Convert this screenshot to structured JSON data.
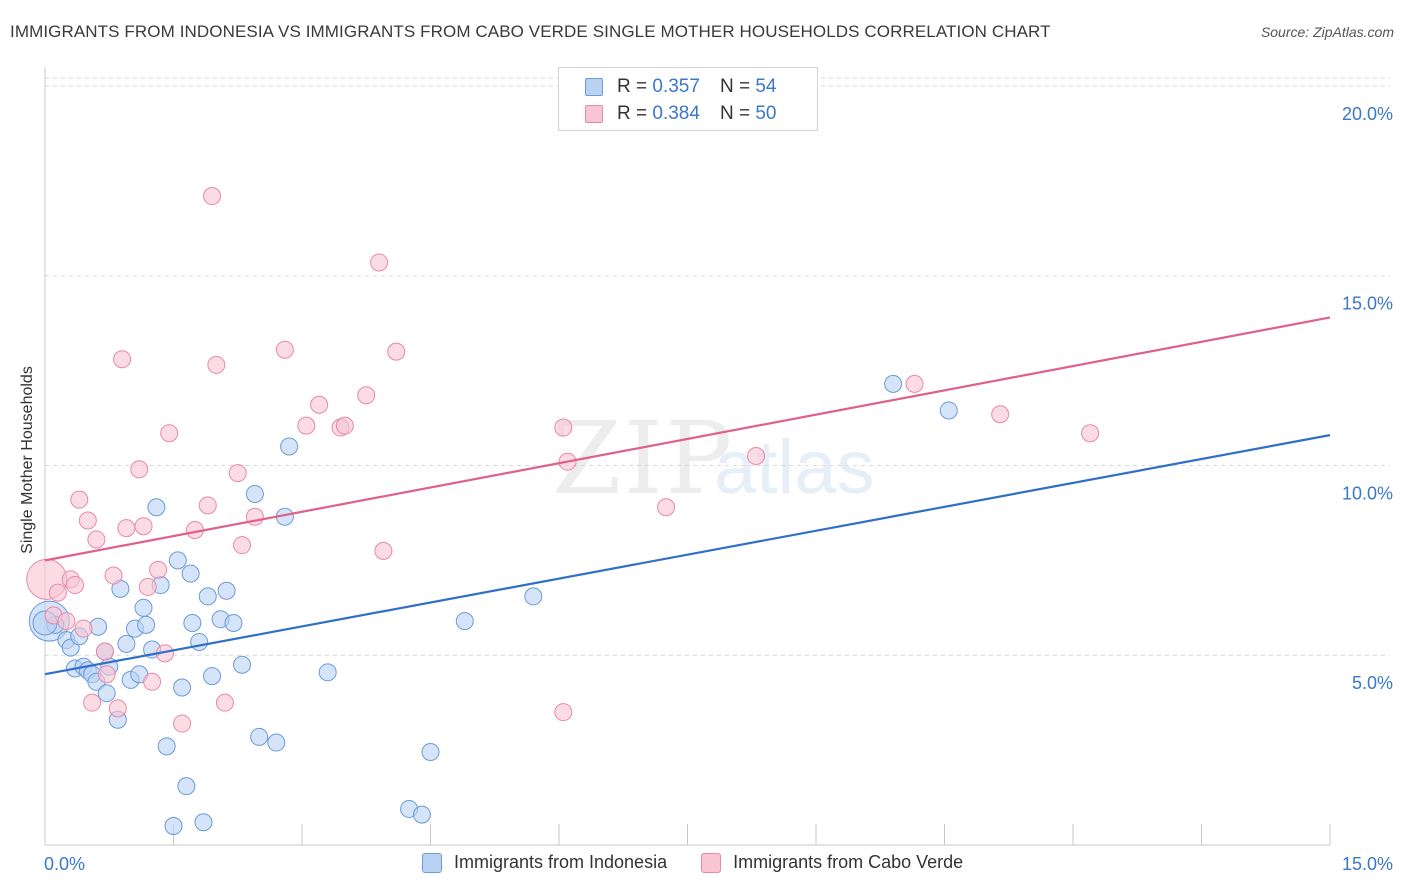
{
  "title": "IMMIGRANTS FROM INDONESIA VS IMMIGRANTS FROM CABO VERDE SINGLE MOTHER HOUSEHOLDS CORRELATION CHART",
  "source": "Source: ZipAtlas.com",
  "watermark": {
    "zip": "ZIP",
    "atlas": "atlas"
  },
  "legend": {
    "rows": [
      {
        "r_label": "R =",
        "r_value": "0.357",
        "n_label": "N =",
        "n_value": "54"
      },
      {
        "r_label": "R =",
        "r_value": "0.384",
        "n_label": "N =",
        "n_value": "50"
      }
    ]
  },
  "colors": {
    "series1_fill": "#b9d2f3",
    "series1_stroke": "#6b9bd6",
    "series1_line": "#2f6fc9",
    "series2_fill": "#f9c4d3",
    "series2_stroke": "#e889a7",
    "series2_line": "#e0608a",
    "tick_label": "#3a78c8",
    "grid": "#d8d8d8"
  },
  "chart_data": {
    "type": "scatter",
    "title": "IMMIGRANTS FROM INDONESIA VS IMMIGRANTS FROM CABO VERDE SINGLE MOTHER HOUSEHOLDS CORRELATION CHART",
    "xlabel": "",
    "ylabel": "Single Mother Households",
    "xlim": [
      0,
      15
    ],
    "ylim": [
      0,
      20.5
    ],
    "x_tick_labels": [
      {
        "value": 0,
        "label": "0.0%"
      },
      {
        "value": 15,
        "label": "15.0%"
      }
    ],
    "y_tick_labels": [
      {
        "value": 5,
        "label": "5.0%"
      },
      {
        "value": 10,
        "label": "10.0%"
      },
      {
        "value": 15,
        "label": "15.0%"
      },
      {
        "value": 20,
        "label": "20.0%"
      }
    ],
    "x_minor_ticks": [
      1.5,
      3.0,
      4.5,
      6.0,
      7.5,
      9.0,
      10.5,
      12.0,
      13.5
    ],
    "series": [
      {
        "name": "Immigrants from Indonesia",
        "r": 0.357,
        "n": 54,
        "trend": {
          "x": [
            0,
            15
          ],
          "y": [
            4.5,
            10.8
          ]
        },
        "points": [
          [
            0.05,
            5.9,
            "lg"
          ],
          [
            0.12,
            5.8
          ],
          [
            0.25,
            5.4
          ],
          [
            0.3,
            5.2
          ],
          [
            0.35,
            4.65
          ],
          [
            0.4,
            5.5
          ],
          [
            0.45,
            4.7
          ],
          [
            0.5,
            4.6
          ],
          [
            0.55,
            4.5
          ],
          [
            0.6,
            4.3
          ],
          [
            0.62,
            5.75
          ],
          [
            0.7,
            5.1
          ],
          [
            0.72,
            4.0
          ],
          [
            0.75,
            4.7
          ],
          [
            0.85,
            3.3
          ],
          [
            0.88,
            6.75
          ],
          [
            0.95,
            5.3
          ],
          [
            1.0,
            4.35
          ],
          [
            1.05,
            5.7
          ],
          [
            1.1,
            4.5
          ],
          [
            1.15,
            6.25
          ],
          [
            1.18,
            5.8
          ],
          [
            1.25,
            5.15
          ],
          [
            1.3,
            8.9
          ],
          [
            1.35,
            6.85
          ],
          [
            1.42,
            2.6
          ],
          [
            1.5,
            0.5
          ],
          [
            1.55,
            7.5
          ],
          [
            1.6,
            4.15
          ],
          [
            1.65,
            1.55
          ],
          [
            1.7,
            7.15
          ],
          [
            1.72,
            5.85
          ],
          [
            1.8,
            5.35
          ],
          [
            1.85,
            0.6
          ],
          [
            1.9,
            6.55
          ],
          [
            1.95,
            4.45
          ],
          [
            2.05,
            5.95
          ],
          [
            2.12,
            6.7
          ],
          [
            2.2,
            5.85
          ],
          [
            2.3,
            4.75
          ],
          [
            2.45,
            9.25
          ],
          [
            2.5,
            2.85
          ],
          [
            2.7,
            2.7
          ],
          [
            2.8,
            8.65
          ],
          [
            2.85,
            10.5
          ],
          [
            3.3,
            4.55
          ],
          [
            4.25,
            0.95
          ],
          [
            4.4,
            0.8
          ],
          [
            4.5,
            2.45
          ],
          [
            4.9,
            5.9
          ],
          [
            5.7,
            6.55
          ],
          [
            9.9,
            12.15
          ],
          [
            10.55,
            11.45
          ],
          [
            0.0,
            5.85,
            "md"
          ]
        ]
      },
      {
        "name": "Immigrants from Cabo Verde",
        "r": 0.384,
        "n": 50,
        "trend": {
          "x": [
            0,
            15
          ],
          "y": [
            7.5,
            13.9
          ]
        },
        "points": [
          [
            0.02,
            7.0,
            "lg"
          ],
          [
            0.1,
            6.05
          ],
          [
            0.15,
            6.65
          ],
          [
            0.25,
            5.9
          ],
          [
            0.3,
            7.0
          ],
          [
            0.35,
            6.85
          ],
          [
            0.4,
            9.1
          ],
          [
            0.45,
            5.7
          ],
          [
            0.5,
            8.55
          ],
          [
            0.55,
            3.75
          ],
          [
            0.6,
            8.05
          ],
          [
            0.7,
            5.1
          ],
          [
            0.72,
            4.5
          ],
          [
            0.8,
            7.1
          ],
          [
            0.85,
            3.6
          ],
          [
            0.9,
            12.8
          ],
          [
            0.95,
            8.35
          ],
          [
            1.1,
            9.9
          ],
          [
            1.15,
            8.4
          ],
          [
            1.2,
            6.8
          ],
          [
            1.25,
            4.3
          ],
          [
            1.32,
            7.25
          ],
          [
            1.4,
            5.05
          ],
          [
            1.45,
            10.85
          ],
          [
            1.6,
            3.2
          ],
          [
            1.75,
            8.3
          ],
          [
            1.9,
            8.95
          ],
          [
            1.95,
            17.1
          ],
          [
            2.0,
            12.65
          ],
          [
            2.1,
            3.75
          ],
          [
            2.25,
            9.8
          ],
          [
            2.3,
            7.9
          ],
          [
            2.45,
            8.65
          ],
          [
            2.8,
            13.05
          ],
          [
            3.05,
            11.05
          ],
          [
            3.2,
            11.6
          ],
          [
            3.45,
            11.0
          ],
          [
            3.5,
            11.05
          ],
          [
            3.75,
            11.85
          ],
          [
            3.9,
            15.35
          ],
          [
            3.95,
            7.75
          ],
          [
            4.1,
            13.0
          ],
          [
            6.05,
            11.0
          ],
          [
            6.1,
            10.1
          ],
          [
            6.05,
            3.5
          ],
          [
            7.25,
            8.9
          ],
          [
            8.3,
            10.25
          ],
          [
            10.15,
            12.15
          ],
          [
            11.15,
            11.35
          ],
          [
            12.2,
            10.85
          ]
        ]
      }
    ]
  },
  "bottom_legend": {
    "items": [
      {
        "label": "Immigrants from Indonesia"
      },
      {
        "label": "Immigrants from Cabo Verde"
      }
    ]
  }
}
